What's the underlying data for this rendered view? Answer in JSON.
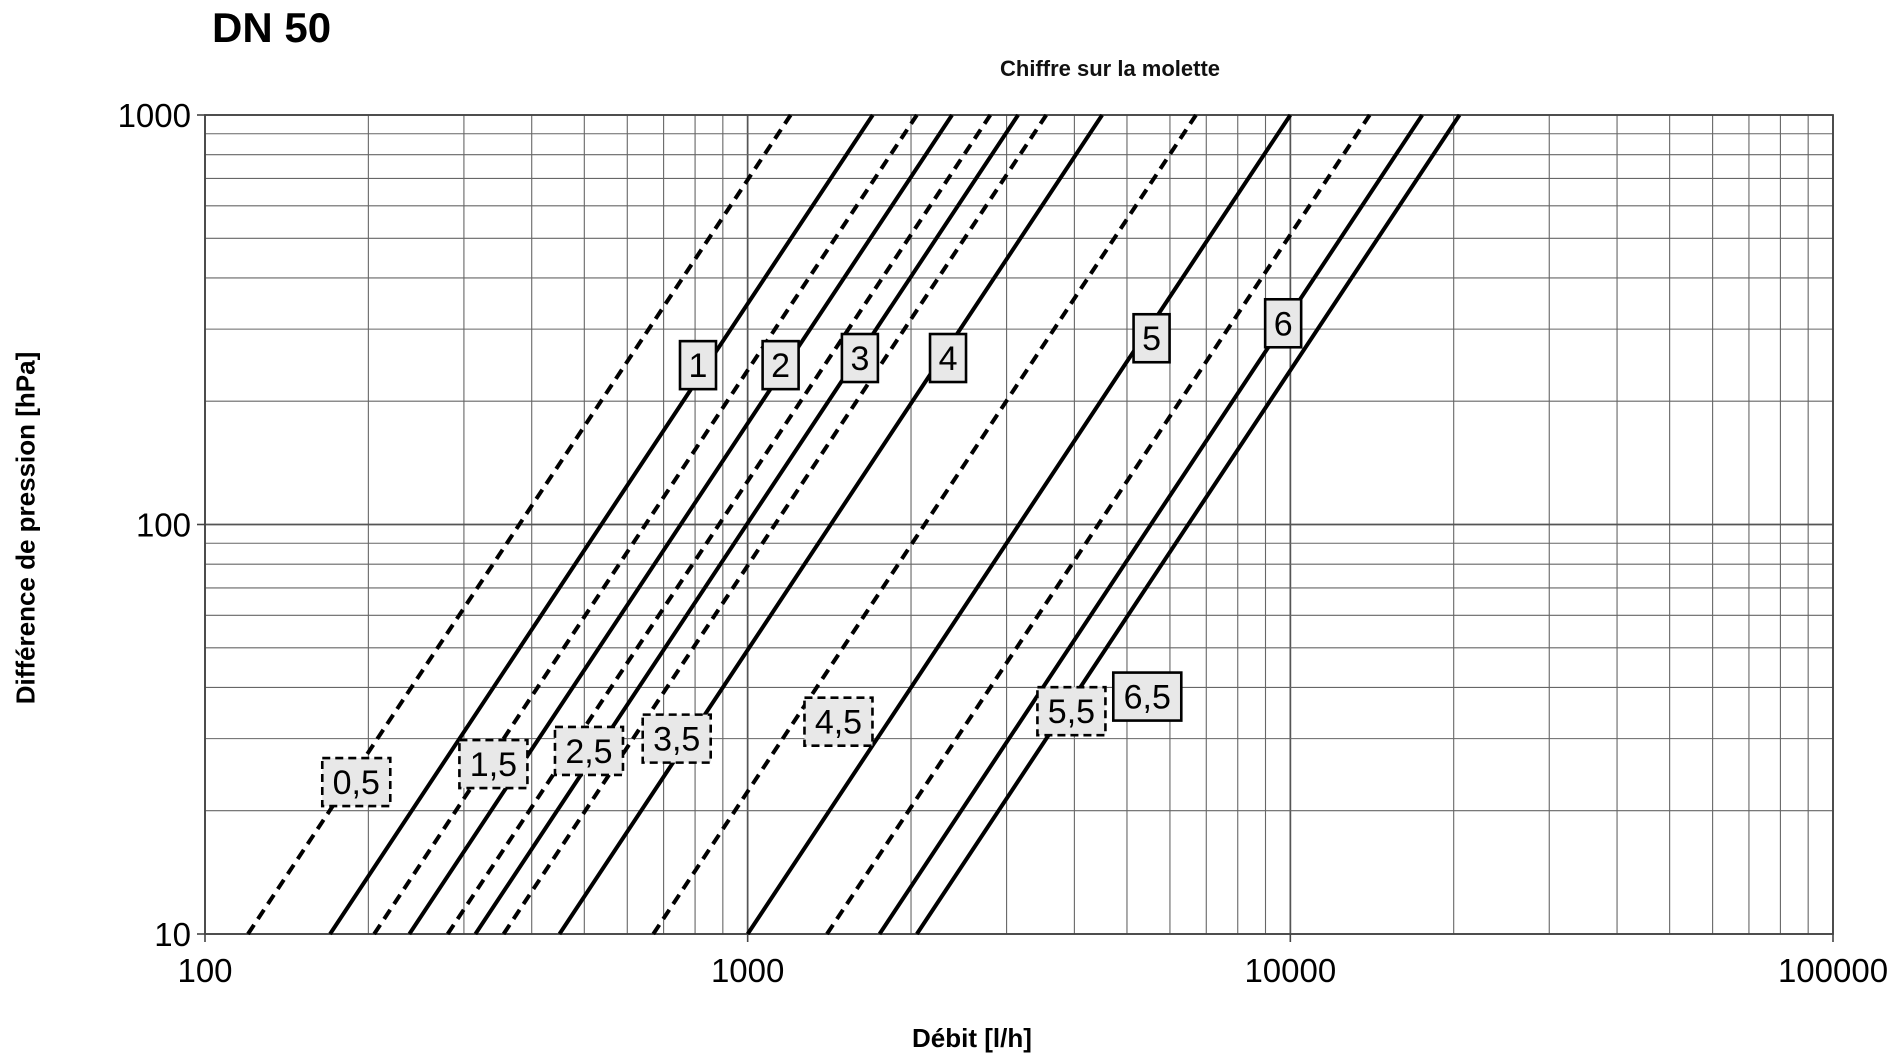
{
  "chart_data": {
    "type": "line",
    "title": "DN 50",
    "subtitle": "Chiffre sur la molette",
    "xlabel": "Débit [l/h]",
    "ylabel": "Différence de pression [hPa]",
    "x_scale": "log",
    "y_scale": "log",
    "xlim": [
      100,
      100000
    ],
    "ylim": [
      10,
      1000
    ],
    "x_ticks": [
      "100",
      "1000",
      "10000",
      "100000"
    ],
    "y_ticks": [
      "10",
      "100",
      "1000"
    ],
    "grid": true,
    "series": [
      {
        "name": "0,5",
        "style": "dashed",
        "x": [
          120,
          1200
        ],
        "y": [
          10,
          1000
        ],
        "label_at": [
          190,
          23.5
        ]
      },
      {
        "name": "1",
        "style": "solid",
        "x": [
          170,
          1700
        ],
        "y": [
          10,
          1000
        ],
        "label_at": [
          810,
          245
        ]
      },
      {
        "name": "1,5",
        "style": "dashed",
        "x": [
          205,
          2050
        ],
        "y": [
          10,
          1000
        ],
        "label_at": [
          340,
          26
        ]
      },
      {
        "name": "2",
        "style": "solid",
        "x": [
          238,
          2380
        ],
        "y": [
          10,
          1000
        ],
        "label_at": [
          1150,
          245
        ]
      },
      {
        "name": "2,5",
        "style": "dashed",
        "x": [
          280,
          2800
        ],
        "y": [
          10,
          1000
        ],
        "label_at": [
          510,
          28
        ]
      },
      {
        "name": "3",
        "style": "solid",
        "x": [
          315,
          3150
        ],
        "y": [
          10,
          1000
        ],
        "label_at": [
          1610,
          255
        ]
      },
      {
        "name": "3,5",
        "style": "dashed",
        "x": [
          355,
          3550
        ],
        "y": [
          10,
          1000
        ],
        "label_at": [
          740,
          30
        ]
      },
      {
        "name": "4",
        "style": "solid",
        "x": [
          450,
          4500
        ],
        "y": [
          10,
          1000
        ],
        "label_at": [
          2340,
          255
        ]
      },
      {
        "name": "4,5",
        "style": "dashed",
        "x": [
          670,
          6700
        ],
        "y": [
          10,
          1000
        ],
        "label_at": [
          1470,
          33
        ]
      },
      {
        "name": "5",
        "style": "solid",
        "x": [
          1000,
          10000
        ],
        "y": [
          10,
          1000
        ],
        "label_at": [
          5550,
          285
        ]
      },
      {
        "name": "5,5",
        "style": "dashed",
        "x": [
          1400,
          14000
        ],
        "y": [
          10,
          1000
        ],
        "label_at": [
          3950,
          35
        ]
      },
      {
        "name": "6",
        "style": "solid",
        "x": [
          1750,
          17500
        ],
        "y": [
          10,
          1000
        ],
        "label_at": [
          9700,
          310
        ]
      },
      {
        "name": "6,5",
        "style": "solid",
        "x": [
          2050,
          20500
        ],
        "y": [
          10,
          1000
        ],
        "label_at": [
          5450,
          38
        ]
      }
    ]
  }
}
